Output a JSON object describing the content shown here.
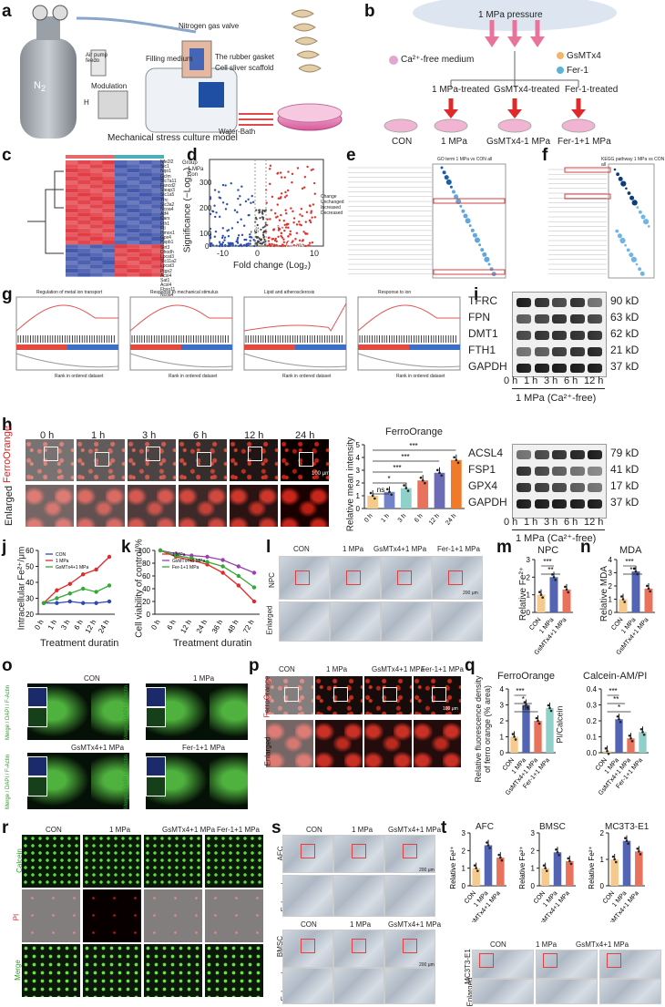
{
  "panel_letters": [
    "a",
    "b",
    "c",
    "d",
    "e",
    "f",
    "g",
    "h",
    "i",
    "j",
    "k",
    "l",
    "m",
    "n",
    "o",
    "p",
    "q",
    "r",
    "s",
    "t"
  ],
  "a": {
    "gas": "N",
    "gas_sub": "2",
    "valve": "Nitrogen gas valve",
    "filling": "Filling medium",
    "gasket": "The rubber gasket",
    "scaffold": "Cell sliver scaffold",
    "water_bath": "Water-Bath",
    "modulation": "Modulation",
    "air_pump": "Air pump feedo",
    "caption": "Mechanical stress culture model",
    "h": "H"
  },
  "b": {
    "pressure": "1 MPa pressure",
    "medium": "Ca²⁺-free medium",
    "gsmtx4": "GsMTx4",
    "fer1": "Fer-1",
    "branches": [
      "1 MPa-treated",
      "GsMTx4-treated",
      "Fer-1-treated"
    ],
    "dishes": [
      "CON",
      "1 MPa",
      "GsMTx4-1 MPa",
      "Fer-1+1 MPa"
    ]
  },
  "c": {
    "genes": [
      "Nfe2l2",
      "Sic1",
      "Nqo1",
      "Gclm",
      "Slc7a11",
      "Fancd2",
      "Steap3",
      "Slc1a5",
      "Tfrc",
      "Slc3a2",
      "Ncoa4",
      "Atf4",
      "Cars",
      "Fth1",
      "Ftl",
      "Hmox1",
      "Gpx4",
      "Hspb1",
      "Sirt3",
      "Dhodh",
      "Lpcat3",
      "Slc11a2",
      "Lpcat3",
      "Ptgs2",
      "Acsl4",
      "Sat1",
      "Acsl4",
      "Fbxo11",
      "Ncoa4"
    ],
    "legend_title": "Group",
    "groups": [
      "1 MPa",
      "Con"
    ],
    "scale": [
      "1.0",
      "0.5",
      "0",
      "-0.5",
      "-1.0"
    ]
  },
  "d": {
    "ylabel": "Significance (−Log₁₀)",
    "xlabel": "Fold change (Log₂)",
    "yticks": [
      "300",
      "200",
      "100",
      "0"
    ],
    "xticks": [
      "-10",
      "0",
      "10"
    ],
    "genes": [
      "Gpx4",
      "Ftl",
      "Acsl4",
      "Tfrc",
      "Slc7a11"
    ],
    "legend_title": "Change",
    "legend": [
      "Unchanged",
      "Increased",
      "Decreased"
    ]
  },
  "e": {
    "title": "GO term 1 MPa vs CON all"
  },
  "f": {
    "title": "KEGG pathway 1 MPa vs CON all"
  },
  "g": {
    "titles": [
      "Regulation of metal ion transport",
      "Response to mechanical stimulus",
      "Lipid and atherosclerosis",
      "Response to ion"
    ],
    "ylabel": "Running enrichment score",
    "xlabel": "Rank in ordered dataset"
  },
  "h": {
    "times": [
      "0 h",
      "1 h",
      "3 h",
      "6 h",
      "12 h",
      "24 h"
    ],
    "row1": "FerroOrange",
    "row2": "Enlarged",
    "scale": "100 μm",
    "chart_title": "FerroOrange",
    "ylabel": "Relative mean intensity",
    "yticks": [
      "0",
      "1",
      "2",
      "3",
      "4",
      "5"
    ],
    "sig": [
      "ns",
      "*",
      "***",
      "***",
      "***"
    ]
  },
  "i": {
    "top_proteins": [
      "TFRC",
      "FPN",
      "DMT1",
      "FTH1",
      "GAPDH"
    ],
    "top_kd": [
      "90 kD",
      "63 kD",
      "62 kD",
      "21 kD",
      "37 kD"
    ],
    "bottom_proteins": [
      "ACSL4",
      "FSP1",
      "GPX4",
      "GAPDH"
    ],
    "bottom_kd": [
      "79 kD",
      "41 kD",
      "17 kD",
      "37 kD"
    ],
    "times": [
      "0 h",
      "1 h",
      "3 h",
      "6 h",
      "12 h"
    ],
    "condition": "1 MPa (Ca²⁺-free)"
  },
  "j": {
    "ylabel": "Intracellular Fe²⁺/μm",
    "xlabel": "Treatment duratin",
    "legend": [
      "CON",
      "1 MPa",
      "GsMTx4+1 MPa"
    ],
    "yticks": [
      "20",
      "30",
      "40",
      "50",
      "60"
    ],
    "xticks": [
      "0 h",
      "1 h",
      "3 h",
      "6 h",
      "12 h",
      "24 h"
    ]
  },
  "k": {
    "ylabel": "Cell viability of control/%",
    "xlabel": "Treatment duratin",
    "legend": [
      "1 MPa",
      "GsMTx4+1 MPa",
      "Fer-1+1 MPa"
    ],
    "yticks": [
      "0",
      "20",
      "40",
      "60",
      "80",
      "100"
    ],
    "xticks": [
      "0 h",
      "6 h",
      "12 h",
      "24 h",
      "36 h",
      "48 h",
      "72 h"
    ]
  },
  "l": {
    "cols": [
      "CON",
      "1 MPa",
      "GsMTx4+1 MPa",
      "Fer-1+1 MPa"
    ],
    "row1": "NPC",
    "row2": "Enlarged",
    "scale": "200 μm"
  },
  "m": {
    "title": "NPC",
    "ylabel": "Relative Fe²⁺",
    "yticks": [
      "0",
      "1",
      "2",
      "3"
    ],
    "cats": [
      "CON",
      "1 MPa",
      "GsMTx4+1 MPa"
    ],
    "sig": [
      "***",
      "**"
    ]
  },
  "n": {
    "title": "MDA",
    "ylabel": "Relative MDA",
    "yticks": [
      "0",
      "1",
      "2",
      "3",
      "4"
    ],
    "cats": [
      "CON",
      "1 MPa",
      "GsMTx4+1 MPa"
    ],
    "sig": [
      "***",
      "**"
    ]
  },
  "o": {
    "titles": [
      "CON",
      "1 MPa",
      "GsMTx4+1 MPa",
      "Fer-1+1 MPa"
    ],
    "stain": "Merge / DAPI / F-Actin"
  },
  "p": {
    "cols": [
      "CON",
      "1 MPa",
      "GsMTx4+1 MPa",
      "Fer-1+1 MPa"
    ],
    "row1": "FerroOrange",
    "row2": "Enlarged",
    "scale": "100 μm"
  },
  "q": {
    "title1": "FerroOrange",
    "ylabel1": "Relative fluorescence density of ferro orange (% area)",
    "yticks1": [
      "0",
      "1",
      "2",
      "3",
      "4"
    ],
    "title2": "Calcein-AM/PI",
    "ylabel2": "PI/Calcein",
    "yticks2": [
      "0.0",
      "0.1",
      "0.2",
      "0.3",
      "0.4"
    ],
    "cats": [
      "CON",
      "1 MPa",
      "GsMTx4+1 MPa",
      "Fer-1+1 MPa"
    ],
    "sig": [
      "***",
      "*",
      "ns"
    ],
    "sig2": [
      "***",
      "**",
      "*"
    ]
  },
  "r": {
    "cols": [
      "CON",
      "1 MPa",
      "GsMTx4+1 MPa",
      "Fer-1+1 MPa"
    ],
    "rows": [
      "Calcein",
      "PI",
      "Merge"
    ]
  },
  "s": {
    "cols": [
      "CON",
      "1 MPa",
      "GsMTx4+1 MPa"
    ],
    "afc": "AFC",
    "bmsc": "BMSC",
    "enlarged": "Enlarged",
    "scale": "200 μm"
  },
  "t": {
    "titles": [
      "AFC",
      "BMSC",
      "MC3T3-E1"
    ],
    "ylabel": "Relative Fe²⁺",
    "cats": [
      "CON",
      "1 MPa",
      "GsMTx4+1 MPa"
    ],
    "mc3t3": "MC3T3-E1"
  },
  "chart_data": [
    {
      "type": "bar",
      "title": "FerroOrange",
      "ylabel": "Relative mean intensity",
      "categories": [
        "0 h",
        "1 h",
        "3 h",
        "6 h",
        "12 h",
        "24 h"
      ],
      "values": [
        1.0,
        1.3,
        1.6,
        2.2,
        2.8,
        3.8
      ],
      "ylim": [
        0,
        5
      ]
    },
    {
      "type": "line",
      "ylabel": "Intracellular Fe²⁺/μm",
      "xlabel": "Treatment duratin",
      "x": [
        "0 h",
        "1 h",
        "3 h",
        "6 h",
        "12 h",
        "24 h"
      ],
      "series": [
        {
          "name": "CON",
          "values": [
            27,
            27,
            28,
            27,
            27,
            28
          ]
        },
        {
          "name": "1 MPa",
          "values": [
            27,
            35,
            39,
            45,
            48,
            56
          ]
        },
        {
          "name": "GsMTx4+1 MPa",
          "values": [
            27,
            30,
            33,
            36,
            34,
            38
          ]
        }
      ],
      "ylim": [
        20,
        60
      ]
    },
    {
      "type": "line",
      "ylabel": "Cell viability of control/%",
      "xlabel": "Treatment duratin",
      "x": [
        "0 h",
        "6 h",
        "12 h",
        "24 h",
        "36 h",
        "48 h",
        "72 h"
      ],
      "series": [
        {
          "name": "1 MPa",
          "values": [
            100,
            90,
            85,
            78,
            65,
            45,
            20
          ]
        },
        {
          "name": "GsMTx4+1 MPa",
          "values": [
            100,
            95,
            92,
            90,
            85,
            75,
            65
          ]
        },
        {
          "name": "Fer-1+1 MPa",
          "values": [
            100,
            92,
            88,
            82,
            75,
            60,
            42
          ]
        }
      ],
      "ylim": [
        0,
        100
      ]
    },
    {
      "type": "bar",
      "title": "NPC",
      "ylabel": "Relative Fe²⁺",
      "categories": [
        "CON",
        "1 MPa",
        "GsMTx4+1 MPa"
      ],
      "values": [
        1.0,
        2.0,
        1.3
      ],
      "ylim": [
        0,
        3
      ]
    },
    {
      "type": "bar",
      "title": "MDA",
      "ylabel": "Relative MDA",
      "categories": [
        "CON",
        "1 MPa",
        "GsMTx4+1 MPa"
      ],
      "values": [
        1.0,
        3.1,
        1.8
      ],
      "ylim": [
        0,
        4
      ]
    },
    {
      "type": "bar",
      "title": "FerroOrange",
      "ylabel": "Relative fluorescence density of ferro orange (% area)",
      "categories": [
        "CON",
        "1 MPa",
        "GsMTx4+1 MPa",
        "Fer-1+1 MPa"
      ],
      "values": [
        1.0,
        3.0,
        2.0,
        2.8
      ],
      "ylim": [
        0,
        4
      ]
    },
    {
      "type": "bar",
      "title": "Calcein-AM/PI",
      "ylabel": "PI/Calcein",
      "categories": [
        "CON",
        "1 MPa",
        "GsMTx4+1 MPa",
        "Fer-1+1 MPa"
      ],
      "values": [
        0.01,
        0.21,
        0.09,
        0.13
      ],
      "ylim": [
        0,
        0.4
      ]
    },
    {
      "type": "bar",
      "title": "AFC",
      "ylabel": "Relative Fe²⁺",
      "categories": [
        "CON",
        "1 MPa",
        "GsMTx4+1 MPa"
      ],
      "values": [
        1.0,
        2.3,
        1.6
      ],
      "ylim": [
        0,
        3
      ]
    },
    {
      "type": "bar",
      "title": "BMSC",
      "ylabel": "Relative Fe²⁺",
      "categories": [
        "CON",
        "1 MPa",
        "GsMTx4+1 MPa"
      ],
      "values": [
        1.0,
        1.9,
        1.4
      ],
      "ylim": [
        0,
        3
      ]
    },
    {
      "type": "bar",
      "title": "MC3T3-E1",
      "ylabel": "Relative Fe²⁺",
      "categories": [
        "CON",
        "1 MPa",
        "GsMTx4+1 MPa"
      ],
      "values": [
        1.0,
        1.7,
        1.3
      ],
      "ylim": [
        0,
        2
      ]
    }
  ],
  "colors": {
    "con": "#f6c98d",
    "mpa": "#5464b4",
    "gsm": "#e8725c",
    "fer": "#8fd0c8",
    "heat_hi": "#e0313a",
    "heat_lo": "#3a4fa8"
  }
}
